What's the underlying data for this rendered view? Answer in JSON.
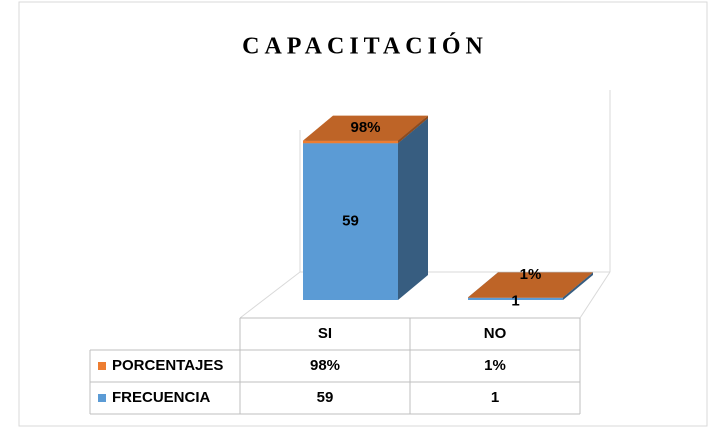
{
  "chart_data": {
    "type": "bar3d_stacked",
    "title": "CAPACITACIÓN",
    "categories": [
      "SI",
      "NO"
    ],
    "series": [
      {
        "name": "FRECUENCIA",
        "color": "#5b9bd5",
        "values": [
          59,
          1
        ]
      },
      {
        "name": "PORCENTAJES",
        "color": "#ed7d31",
        "values": [
          0.98,
          0.01
        ],
        "value_labels": [
          "98%",
          "1%"
        ]
      }
    ],
    "ylim": [
      0,
      70
    ]
  }
}
